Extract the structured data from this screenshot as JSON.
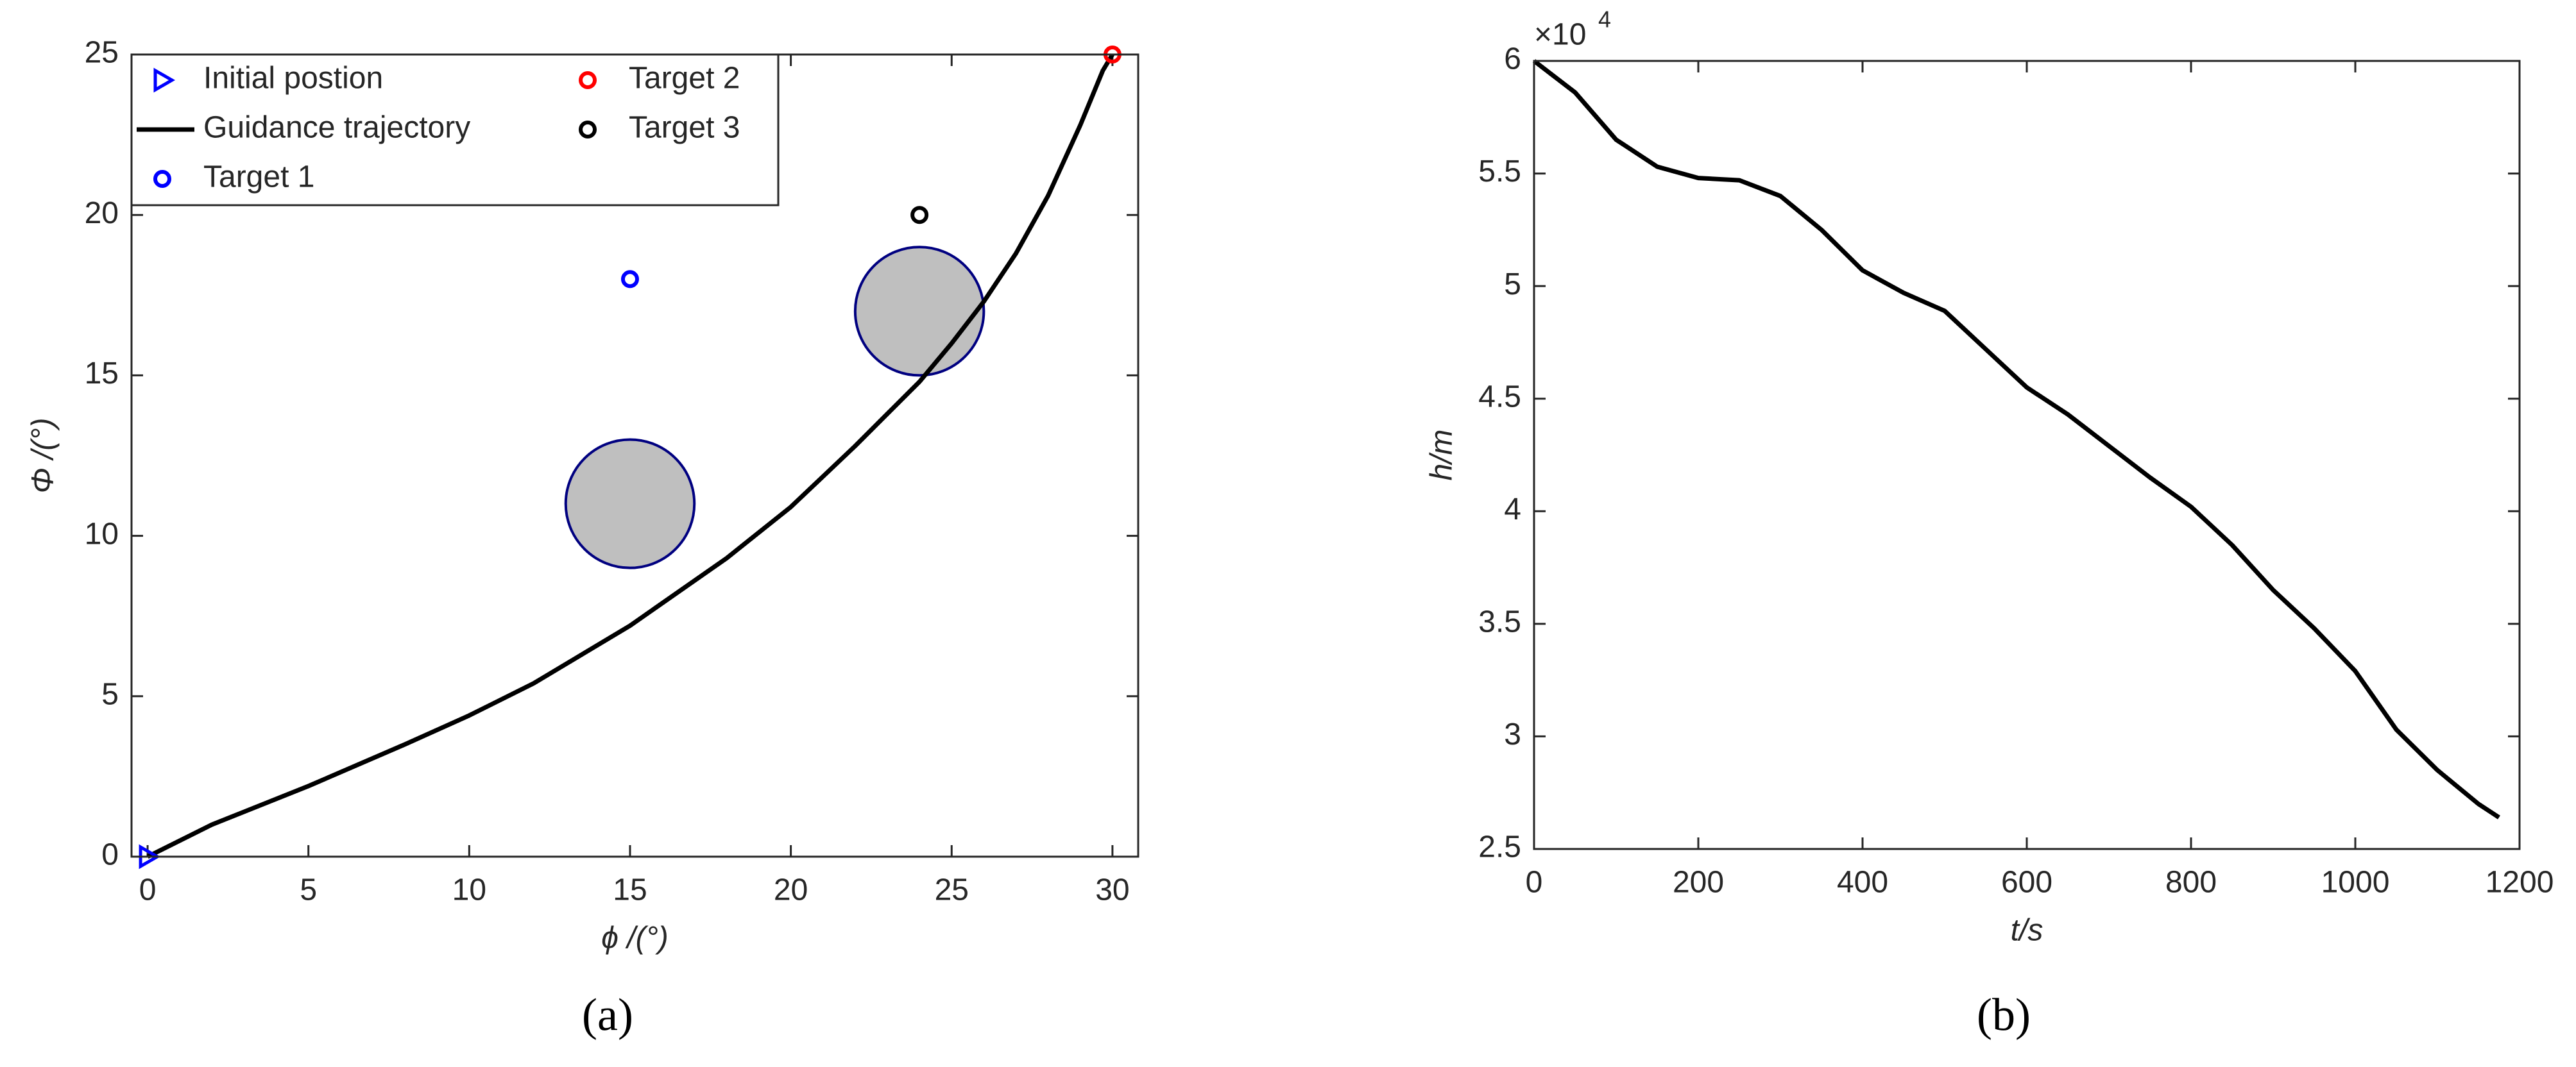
{
  "chart_data": [
    {
      "type": "line",
      "x_label": "ϕ /(°)",
      "y_label": "Φ /(°)",
      "caption": "(a)",
      "xlim": [
        -0.5,
        30.8
      ],
      "ylim": [
        0,
        25
      ],
      "xticks": [
        0,
        5,
        10,
        15,
        20,
        25,
        30
      ],
      "yticks": [
        0,
        5,
        10,
        15,
        20,
        25
      ],
      "legend": "upper left",
      "series": [
        {
          "name": "Initial postion",
          "marker": "triangle",
          "color": "#0000ff",
          "x": [
            0
          ],
          "y": [
            0
          ]
        },
        {
          "name": "Guidance trajectory",
          "marker": "line",
          "color": "#000000",
          "x": [
            0,
            2,
            5,
            8,
            10,
            12,
            15,
            18,
            20,
            22,
            23,
            24,
            25,
            26,
            27,
            28,
            29,
            29.7,
            30
          ],
          "y": [
            0,
            1,
            2.2,
            3.5,
            4.4,
            5.4,
            7.2,
            9.3,
            10.9,
            12.8,
            13.8,
            14.8,
            16,
            17.3,
            18.8,
            20.6,
            22.8,
            24.5,
            25
          ]
        },
        {
          "name": "Target 1",
          "marker": "circle",
          "color": "#0000ff",
          "x": [
            15
          ],
          "y": [
            18
          ]
        },
        {
          "name": "Target 2",
          "marker": "circle",
          "color": "#ff0000",
          "x": [
            30
          ],
          "y": [
            25
          ]
        },
        {
          "name": "Target 3",
          "marker": "circle",
          "color": "#000000",
          "x": [
            24
          ],
          "y": [
            20
          ]
        }
      ],
      "obstacles": [
        {
          "x": 15,
          "y": 11,
          "r": 2
        },
        {
          "x": 24,
          "y": 17,
          "r": 2
        }
      ],
      "obstacle_color": "#bfbfbf",
      "obstacle_edge": "#000080"
    },
    {
      "type": "line",
      "x_label": "t/s",
      "y_label": "h/m",
      "caption": "(b)",
      "y_multiplier": "×10",
      "y_multiplier_power": "4",
      "xlim": [
        0,
        1200
      ],
      "ylim": [
        2.5,
        6
      ],
      "xticks": [
        0,
        200,
        400,
        600,
        800,
        1000,
        1200
      ],
      "yticks": [
        2.5,
        3,
        3.5,
        4,
        4.5,
        5,
        5.5,
        6
      ],
      "series": [
        {
          "marker": "line",
          "color": "#000000",
          "x": [
            0,
            50,
            100,
            150,
            200,
            250,
            300,
            350,
            400,
            450,
            500,
            550,
            600,
            650,
            700,
            750,
            800,
            850,
            900,
            950,
            1000,
            1050,
            1100,
            1150,
            1175
          ],
          "y": [
            6.0,
            5.86,
            5.65,
            5.53,
            5.48,
            5.47,
            5.4,
            5.25,
            5.07,
            4.97,
            4.89,
            4.72,
            4.55,
            4.43,
            4.29,
            4.15,
            4.02,
            3.85,
            3.65,
            3.48,
            3.29,
            3.03,
            2.85,
            2.7,
            2.64
          ]
        }
      ]
    }
  ]
}
